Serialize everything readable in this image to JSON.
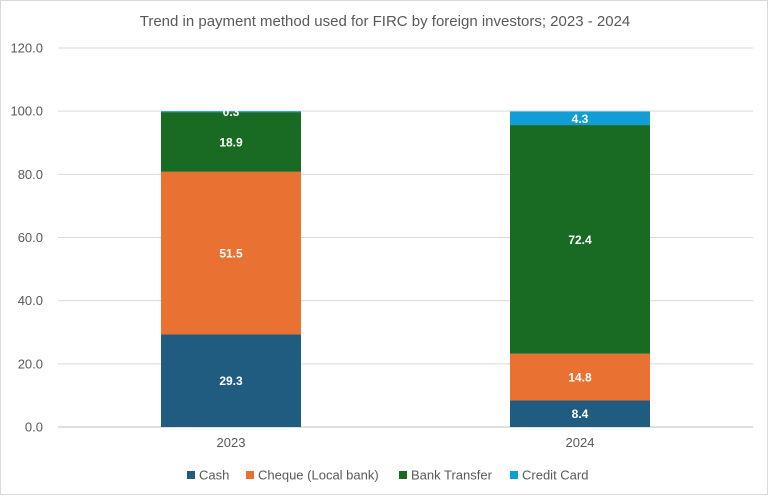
{
  "chart_data": {
    "type": "bar",
    "stacked": true,
    "title": "Trend in payment method used  for FIRC by foreign investors; 2023 - 2024",
    "xlabel": "",
    "ylabel": "",
    "categories": [
      "2023",
      "2024"
    ],
    "ylim": [
      0,
      120
    ],
    "yticks": [
      0,
      20,
      40,
      60,
      80,
      100,
      120
    ],
    "ytick_labels": [
      "0.0",
      "20.0",
      "40.0",
      "60.0",
      "80.0",
      "100.0",
      "120.0"
    ],
    "grid": true,
    "legend_position": "bottom",
    "series": [
      {
        "name": "Cash",
        "color": "#1f5c80",
        "values": [
          29.3,
          8.4
        ],
        "labels": [
          "29.3",
          "8.4"
        ]
      },
      {
        "name": "Cheque (Local bank)",
        "color": "#e97132",
        "values": [
          51.5,
          14.8
        ],
        "labels": [
          "51.5",
          "14.8"
        ]
      },
      {
        "name": "Bank Transfer",
        "color": "#196b24",
        "values": [
          18.9,
          72.4
        ],
        "labels": [
          "18.9",
          "72.4"
        ]
      },
      {
        "name": "Credit Card",
        "color": "#0f9ed5",
        "values": [
          0.3,
          4.3
        ],
        "labels": [
          "0.3",
          "4.3"
        ]
      }
    ]
  }
}
